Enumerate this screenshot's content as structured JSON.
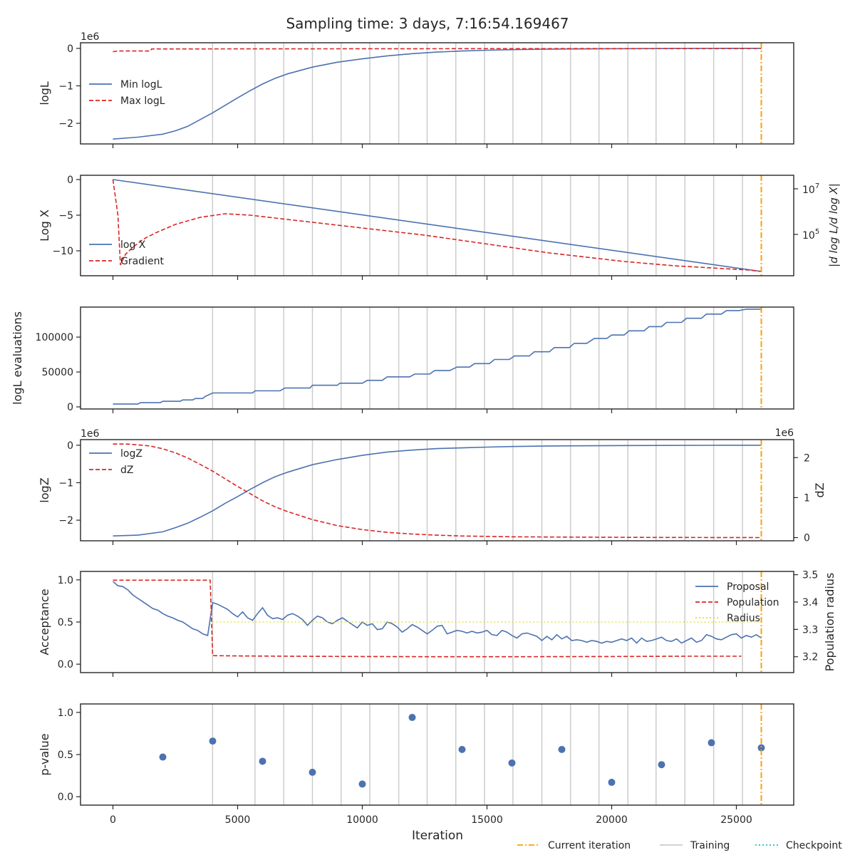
{
  "chart_data": {
    "type": "line",
    "title": "Sampling time: 3 days, 7:16:54.169467",
    "xlabel": "Iteration",
    "xlim": [
      -1300,
      27300
    ],
    "xticks": [
      0,
      5000,
      10000,
      15000,
      20000,
      25000
    ],
    "current_iteration": 26000,
    "training_iterations": [
      3995,
      5695,
      6850,
      8000,
      9150,
      10300,
      11460,
      12600,
      13750,
      14900,
      16040,
      17200,
      18350,
      19490,
      20650,
      21780,
      22935,
      24090,
      25245
    ],
    "legend": {
      "current": "Current iteration",
      "training": "Training",
      "checkpoint": "Checkpoint"
    },
    "colors": {
      "blue": "#4c72b0",
      "red": "#d62728",
      "orange": "#ff9f00",
      "training": "#cccccc",
      "checkpoint": "#17becf",
      "radius": "#dede20"
    },
    "panels": {
      "logl": {
        "ylabel": "logL",
        "offset": "1e6",
        "ylim": [
          -2.55,
          0.15
        ],
        "yticks": [
          0,
          -1,
          -2
        ],
        "series": [
          {
            "name": "Min logL",
            "x": [
              0,
              1000,
              2000,
              2500,
              3000,
              3500,
              4000,
              4500,
              5000,
              5500,
              6000,
              6500,
              7000,
              8000,
              9000,
              10000,
              11000,
              12000,
              13000,
              14000,
              15000,
              16000,
              17000,
              18000,
              20000,
              22000,
              24000,
              26000
            ],
            "y": [
              -2.42,
              -2.37,
              -2.29,
              -2.2,
              -2.08,
              -1.9,
              -1.72,
              -1.52,
              -1.32,
              -1.13,
              -0.95,
              -0.8,
              -0.68,
              -0.5,
              -0.37,
              -0.28,
              -0.2,
              -0.14,
              -0.1,
              -0.07,
              -0.05,
              -0.035,
              -0.025,
              -0.018,
              -0.009,
              -0.005,
              -0.002,
              -0.001
            ]
          },
          {
            "name": "Max logL",
            "x": [
              0,
              200,
              1500,
              1550,
              26000
            ],
            "y": [
              -0.09,
              -0.07,
              -0.07,
              -0.015,
              -0.002
            ]
          }
        ]
      },
      "logx": {
        "ylabel": "Log X",
        "ylabel_right": "|d log L/d log X|",
        "ylim": [
          -13.5,
          0.6
        ],
        "yticks": [
          0,
          -5,
          -10
        ],
        "y2ticks": [
          {
            "exp": 7,
            "y": -1.3
          },
          {
            "exp": 5,
            "y": -7.7
          }
        ],
        "series": [
          {
            "name": "log X",
            "x": [
              0,
              26000
            ],
            "y": [
              0,
              -12.9
            ]
          },
          {
            "name": "Gradient",
            "x": [
              0,
              200,
              300,
              500,
              800,
              1200,
              1700,
              2500,
              3500,
              4500,
              5500,
              6500,
              7500,
              8500,
              9500,
              10500,
              11500,
              12500,
              13500,
              14500,
              15500,
              16500,
              17500,
              18500,
              19500,
              20500,
              21500,
              22500,
              23500,
              24500,
              25500,
              26000
            ],
            "y": [
              0,
              -5,
              -12,
              -10.5,
              -9.5,
              -8.4,
              -7.5,
              -6.3,
              -5.3,
              -4.8,
              -5,
              -5.4,
              -5.8,
              -6.2,
              -6.6,
              -7,
              -7.4,
              -7.8,
              -8.3,
              -8.8,
              -9.3,
              -9.8,
              -10.3,
              -10.7,
              -11.1,
              -11.5,
              -11.8,
              -12.1,
              -12.3,
              -12.5,
              -12.7,
              -12.9
            ]
          }
        ]
      },
      "evals": {
        "ylabel": "logL evaluations",
        "ylim": [
          -3000,
          143000
        ],
        "yticks": [
          0,
          50000,
          100000
        ],
        "ytick_labels": [
          "0",
          "50000",
          "100000"
        ],
        "series": [
          {
            "name": "logL evaluations",
            "x": [
              0,
              1000,
              1100,
              1900,
              2000,
              2700,
              2800,
              3200,
              3300,
              3600,
              3700,
              4000,
              5600,
              5700,
              6700,
              6900,
              7900,
              8000,
              9000,
              9100,
              10000,
              10200,
              10800,
              11000,
              11900,
              12100,
              12700,
              12900,
              13500,
              13800,
              14300,
              14500,
              15100,
              15300,
              15900,
              16100,
              16700,
              16900,
              17500,
              17700,
              18300,
              18500,
              19000,
              19300,
              19800,
              20000,
              20500,
              20700,
              21300,
              21500,
              22000,
              22200,
              22800,
              23000,
              23600,
              23800,
              24400,
              24600,
              25100,
              25400,
              26000
            ],
            "y": [
              4000,
              4000,
              6000,
              6000,
              8000,
              8000,
              10000,
              10000,
              12000,
              12000,
              15000,
              20000,
              20000,
              23000,
              23000,
              27000,
              27000,
              31000,
              31000,
              34000,
              34000,
              38000,
              38000,
              43000,
              43000,
              47000,
              47000,
              52000,
              52000,
              57000,
              57000,
              62000,
              62000,
              68000,
              68000,
              73000,
              73000,
              79000,
              79000,
              85000,
              85000,
              91000,
              91000,
              98000,
              98000,
              103000,
              103000,
              109000,
              109000,
              115000,
              115000,
              121000,
              121000,
              127000,
              127000,
              133000,
              133000,
              138000,
              138000,
              140000,
              140000
            ]
          }
        ]
      },
      "logz": {
        "ylabel": "logZ",
        "ylabel_right": "dZ",
        "offset": "1e6",
        "offset_right": "1e6",
        "ylim": [
          -2.55,
          0.15
        ],
        "yticks": [
          0,
          -1,
          -2
        ],
        "y2lim": [
          -0.08,
          2.45
        ],
        "y2ticks": [
          0,
          1,
          2
        ],
        "series": [
          {
            "name": "logZ",
            "x": [
              0,
              1000,
              2000,
              2500,
              3000,
              3500,
              4000,
              4500,
              5000,
              5500,
              6000,
              6500,
              7000,
              8000,
              9000,
              10000,
              11000,
              12000,
              13000,
              14000,
              15000,
              16000,
              17000,
              18000,
              20000,
              22000,
              24000,
              26000
            ],
            "y": [
              -2.42,
              -2.4,
              -2.31,
              -2.2,
              -2.08,
              -1.92,
              -1.75,
              -1.55,
              -1.37,
              -1.18,
              -1,
              -0.84,
              -0.72,
              -0.52,
              -0.38,
              -0.27,
              -0.18,
              -0.13,
              -0.09,
              -0.07,
              -0.05,
              -0.035,
              -0.025,
              -0.018,
              -0.009,
              -0.005,
              -0.002,
              -0.001
            ]
          },
          {
            "name": "dZ",
            "x": [
              0,
              500,
              1000,
              1500,
              2000,
              2500,
              3000,
              3500,
              4000,
              4500,
              5000,
              5500,
              6000,
              6500,
              7000,
              8000,
              9000,
              10000,
              11000,
              12000,
              13000,
              14000,
              15000,
              16000,
              18000,
              20000,
              22000,
              24000,
              26000
            ],
            "y": [
              2.34,
              2.34,
              2.32,
              2.29,
              2.22,
              2.12,
              1.99,
              1.83,
              1.66,
              1.47,
              1.28,
              1.1,
              0.92,
              0.77,
              0.65,
              0.45,
              0.3,
              0.2,
              0.13,
              0.09,
              0.06,
              0.04,
              0.03,
              0.02,
              0.012,
              0.007,
              0.004,
              0.002,
              0.001
            ]
          }
        ]
      },
      "acceptance": {
        "ylabel": "Acceptance",
        "ylabel_right": "Population radius",
        "ylim": [
          -0.1,
          1.1
        ],
        "yticks": [
          0,
          0.5,
          1
        ],
        "ytick_labels": [
          "0.0",
          "0.5",
          "1.0"
        ],
        "y2lim": [
          3.142,
          3.512
        ],
        "y2ticks": [
          3.2,
          3.3,
          3.4,
          3.5
        ],
        "y2tick_labels": [
          "3.2",
          "3.3",
          "3.4",
          "3.5"
        ],
        "series": [
          {
            "name": "Proposal",
            "x": [
              0,
              200,
              400,
              600,
              800,
              1000,
              1200,
              1400,
              1600,
              1800,
              2000,
              2200,
              2400,
              2600,
              2800,
              3000,
              3200,
              3400,
              3600,
              3800,
              4000,
              4200,
              4400,
              4600,
              4800,
              5000,
              5200,
              5400,
              5600,
              5800,
              6000,
              6200,
              6400,
              6600,
              6800,
              7000,
              7200,
              7400,
              7600,
              7800,
              8000,
              8200,
              8400,
              8600,
              8800,
              9000,
              9200,
              9400,
              9600,
              9800,
              10000,
              10200,
              10400,
              10600,
              10800,
              11000,
              11200,
              11400,
              11600,
              11800,
              12000,
              12200,
              12400,
              12600,
              12800,
              13000,
              13200,
              13400,
              13600,
              13800,
              14000,
              14200,
              14400,
              14600,
              14800,
              15000,
              15200,
              15400,
              15600,
              15800,
              16000,
              16200,
              16400,
              16600,
              16800,
              17000,
              17200,
              17400,
              17600,
              17800,
              18000,
              18200,
              18400,
              18600,
              18800,
              19000,
              19200,
              19400,
              19600,
              19800,
              20000,
              20200,
              20400,
              20600,
              20800,
              21000,
              21200,
              21400,
              21600,
              21800,
              22000,
              22200,
              22400,
              22600,
              22800,
              23000,
              23200,
              23400,
              23600,
              23800,
              24000,
              24200,
              24400,
              24600,
              24800,
              25000,
              25200,
              25400,
              25600,
              25800,
              26000
            ],
            "y": [
              0.98,
              0.93,
              0.92,
              0.88,
              0.82,
              0.78,
              0.74,
              0.7,
              0.66,
              0.64,
              0.6,
              0.57,
              0.55,
              0.52,
              0.5,
              0.46,
              0.42,
              0.4,
              0.36,
              0.34,
              0.73,
              0.71,
              0.68,
              0.65,
              0.6,
              0.56,
              0.62,
              0.55,
              0.52,
              0.6,
              0.67,
              0.58,
              0.54,
              0.55,
              0.53,
              0.58,
              0.6,
              0.57,
              0.53,
              0.46,
              0.52,
              0.57,
              0.55,
              0.5,
              0.48,
              0.52,
              0.55,
              0.51,
              0.47,
              0.43,
              0.5,
              0.46,
              0.48,
              0.41,
              0.42,
              0.5,
              0.48,
              0.44,
              0.38,
              0.42,
              0.47,
              0.44,
              0.4,
              0.36,
              0.4,
              0.45,
              0.46,
              0.36,
              0.38,
              0.4,
              0.39,
              0.37,
              0.39,
              0.37,
              0.38,
              0.4,
              0.35,
              0.34,
              0.4,
              0.38,
              0.34,
              0.31,
              0.36,
              0.37,
              0.35,
              0.33,
              0.28,
              0.33,
              0.29,
              0.35,
              0.3,
              0.33,
              0.28,
              0.29,
              0.28,
              0.26,
              0.28,
              0.27,
              0.25,
              0.27,
              0.26,
              0.28,
              0.3,
              0.28,
              0.31,
              0.25,
              0.31,
              0.27,
              0.28,
              0.3,
              0.32,
              0.28,
              0.27,
              0.3,
              0.25,
              0.28,
              0.31,
              0.26,
              0.28,
              0.35,
              0.33,
              0.3,
              0.29,
              0.32,
              0.35,
              0.36,
              0.31,
              0.34,
              0.32,
              0.35,
              0.31
            ]
          },
          {
            "name": "Population",
            "x": [
              0,
              3900,
              4000,
              5000,
              7000,
              10000,
              13000,
              16000,
              20000,
              23000,
              25200
            ],
            "y": [
              3.48,
              3.48,
              3.204,
              3.203,
              3.202,
              3.201,
              3.2,
              3.2,
              3.201,
              3.202,
              3.202
            ],
            "axis": "right"
          },
          {
            "name": "Radius",
            "x": [
              4000,
              26000
            ],
            "y": [
              0.5,
              0.5
            ]
          }
        ]
      },
      "pvalue": {
        "ylabel": "p-value",
        "ylim": [
          -0.1,
          1.1
        ],
        "yticks": [
          0,
          0.5,
          1
        ],
        "ytick_labels": [
          "0.0",
          "0.5",
          "1.0"
        ],
        "points": {
          "x": [
            2000,
            4000,
            6000,
            8000,
            10000,
            12000,
            14000,
            16000,
            18000,
            20000,
            22000,
            24000,
            26000
          ],
          "y": [
            0.47,
            0.66,
            0.42,
            0.29,
            0.15,
            0.94,
            0.56,
            0.4,
            0.56,
            0.17,
            0.38,
            0.64,
            0.58
          ]
        }
      }
    }
  }
}
